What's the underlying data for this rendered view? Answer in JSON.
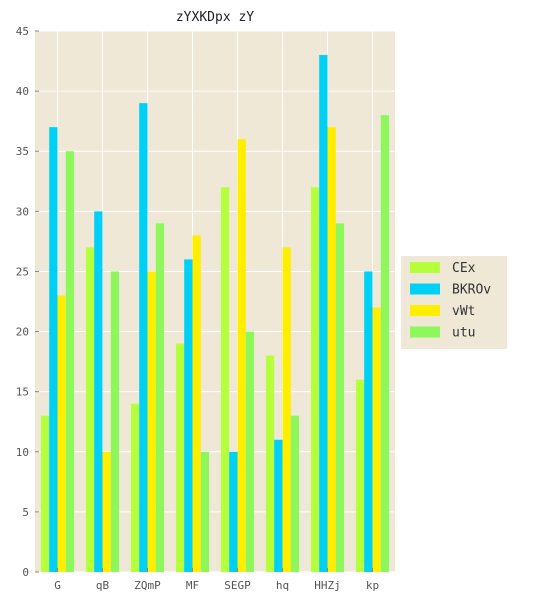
{
  "chart_data": {
    "type": "bar",
    "title": "zYXKDpx zY",
    "xlabel": "",
    "ylabel": "",
    "categories": [
      "G",
      "qB",
      "ZQmP",
      "MF",
      "SEGP",
      "hq",
      "HHZj",
      "kp"
    ],
    "ylim": [
      0,
      45
    ],
    "yticks": [
      0,
      5,
      10,
      15,
      20,
      25,
      30,
      35,
      40,
      45
    ],
    "grid": true,
    "legend_position": "right",
    "background_color": "#efe8d7",
    "series": [
      {
        "name": "CEx",
        "color": "#b5ff3d",
        "values": [
          13,
          27,
          14,
          19,
          32,
          18,
          32,
          16
        ]
      },
      {
        "name": "BKROv",
        "color": "#00d0f5",
        "values": [
          37,
          30,
          39,
          26,
          10,
          11,
          43,
          25
        ]
      },
      {
        "name": "vWt",
        "color": "#ffee00",
        "values": [
          23,
          10,
          25,
          28,
          36,
          27,
          37,
          22
        ]
      },
      {
        "name": "utu",
        "color": "#8ef75c",
        "values": [
          35,
          25,
          29,
          10,
          20,
          13,
          29,
          38
        ]
      }
    ]
  }
}
